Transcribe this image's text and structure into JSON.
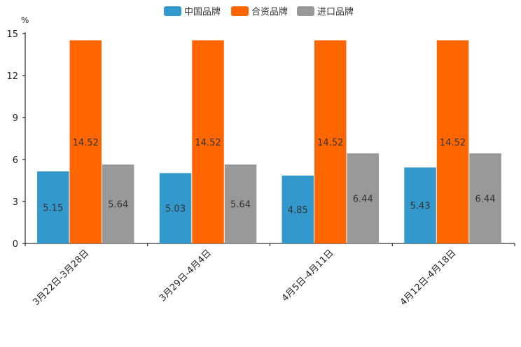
{
  "chart_data": {
    "type": "bar",
    "y_unit": "%",
    "ylim": [
      0,
      15
    ],
    "yticks": [
      0,
      3,
      6,
      9,
      12,
      15
    ],
    "grid": false,
    "legend_position": "top-center",
    "categories": [
      "3月22日-3月28日",
      "3月29日-4月4日",
      "4月5日-4月11日",
      "4月12日-4月18日"
    ],
    "series": [
      {
        "name": "中国品牌",
        "color": "#3399cc",
        "values": [
          5.15,
          5.03,
          4.85,
          5.43
        ]
      },
      {
        "name": "合资品牌",
        "color": "#ff6600",
        "values": [
          14.52,
          14.52,
          14.52,
          14.52
        ]
      },
      {
        "name": "进口品牌",
        "color": "#999999",
        "values": [
          5.64,
          5.64,
          6.44,
          6.44
        ]
      }
    ]
  }
}
